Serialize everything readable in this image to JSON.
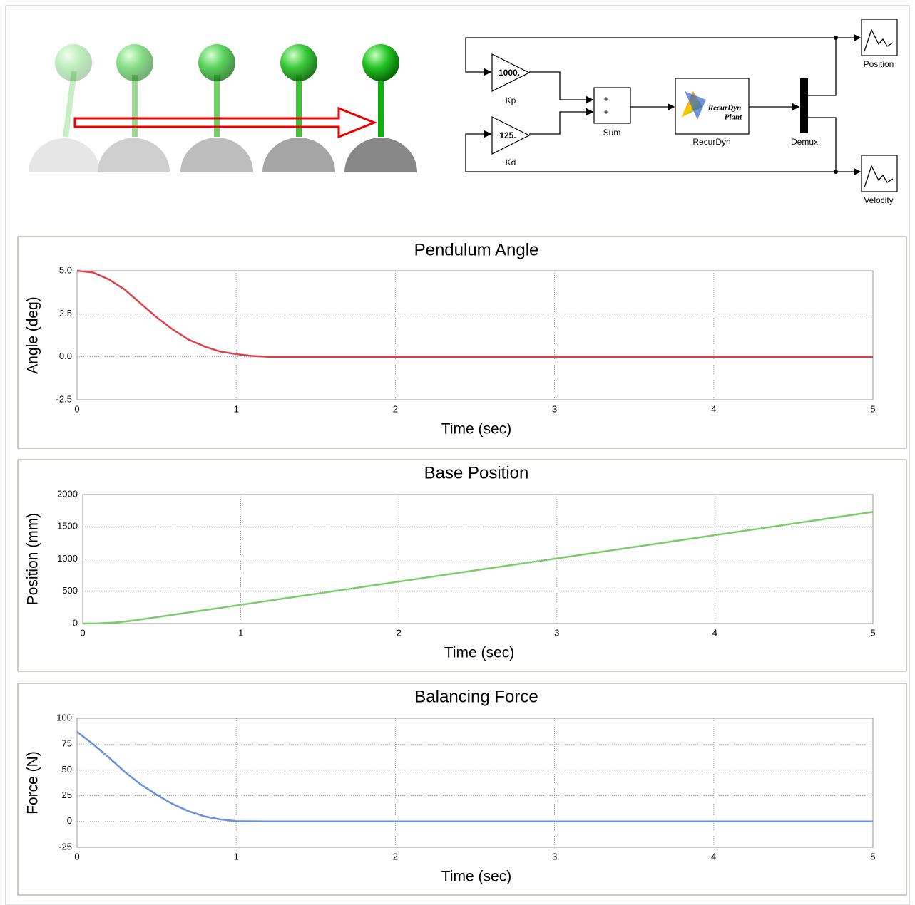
{
  "diagram": {
    "kp_value": "1000.",
    "kp_label": "Kp",
    "kd_value": "125.",
    "kd_label": "Kd",
    "sum_plus_1": "+",
    "sum_plus_2": "+",
    "sum_label": "Sum",
    "plant_text_1": "RecurDyn",
    "plant_text_2": "Plant",
    "plant_label": "RecurDyn",
    "demux_label": "Demux",
    "scope_1_label": "Position",
    "scope_2_label": "Velocity"
  },
  "chart_data": [
    {
      "type": "line",
      "title": "Pendulum Angle",
      "x_label": "Time (sec)",
      "y_label": "Angle (deg)",
      "color": "#e0404a",
      "x": [
        0,
        0.1,
        0.2,
        0.3,
        0.4,
        0.5,
        0.6,
        0.7,
        0.8,
        0.9,
        1.0,
        1.1,
        1.2,
        1.5,
        2,
        2.5,
        3,
        3.5,
        4,
        4.5,
        5
      ],
      "values": [
        5,
        4.9,
        4.5,
        3.9,
        3.1,
        2.3,
        1.6,
        1.0,
        0.6,
        0.3,
        0.15,
        0.05,
        0,
        0,
        0,
        0,
        0,
        0,
        0,
        0,
        0
      ],
      "xlim": [
        0,
        5
      ],
      "xticks": [
        0,
        1,
        2,
        3,
        4,
        5
      ],
      "ylim": [
        -2.5,
        5
      ],
      "yticks": [
        -2.5,
        {
          "value": 0,
          "label": "0.0"
        },
        2.5,
        {
          "value": 5,
          "label": "5.0"
        }
      ],
      "grid": true
    },
    {
      "type": "line",
      "title": "Base Position",
      "x_label": "Time (sec)",
      "y_label": "Position (mm)",
      "color": "#7ccc6c",
      "x": [
        0,
        0.1,
        0.2,
        0.3,
        0.5,
        0.75,
        1,
        1.5,
        2,
        2.5,
        3,
        3.5,
        4,
        4.5,
        5
      ],
      "values": [
        0,
        2,
        15,
        40,
        110,
        200,
        290,
        470,
        650,
        830,
        1010,
        1190,
        1370,
        1550,
        1730
      ],
      "xlim": [
        0,
        5
      ],
      "xticks": [
        0,
        1,
        2,
        3,
        4,
        5
      ],
      "ylim": [
        0,
        2000
      ],
      "yticks": [
        0,
        500,
        1000,
        1500,
        2000
      ],
      "grid": true
    },
    {
      "type": "line",
      "title": "Balancing Force",
      "x_label": "Time (sec)",
      "y_label": "Force (N)",
      "color": "#6a8fdc",
      "x": [
        0,
        0.1,
        0.2,
        0.3,
        0.4,
        0.5,
        0.6,
        0.7,
        0.8,
        0.9,
        1.0,
        1.2,
        2,
        3,
        4,
        5
      ],
      "values": [
        87,
        75,
        62,
        48,
        36,
        26,
        17,
        10,
        5,
        2,
        0.3,
        0,
        0,
        0,
        0,
        0
      ],
      "xlim": [
        0,
        5
      ],
      "xticks": [
        0,
        1,
        2,
        3,
        4,
        5
      ],
      "ylim": [
        -25,
        100
      ],
      "yticks": [
        -25,
        0,
        25,
        50,
        75,
        100
      ],
      "grid": true
    }
  ]
}
